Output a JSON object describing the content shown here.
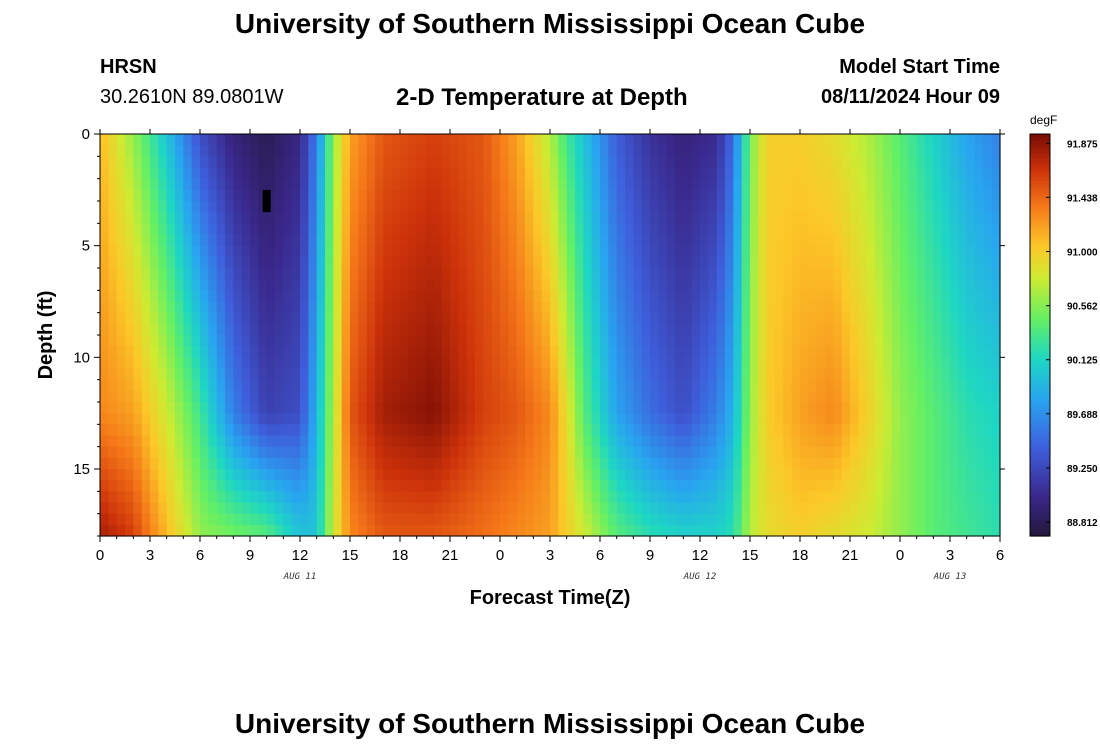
{
  "page": {
    "title_top": "University of Southern Mississippi Ocean Cube",
    "station": "HRSN",
    "coords": "30.2610N  89.0801W",
    "subtitle": "2-D Temperature at Depth",
    "start_label": "Model Start Time",
    "start_value": "08/11/2024 Hour 09",
    "title_bottom": "University of Southern Mississippi Ocean Cube"
  },
  "chart_data": {
    "type": "heatmap",
    "title": "2-D Temperature at Depth",
    "xlabel": "Forecast Time(Z)",
    "ylabel": "Depth (ft)",
    "xlim": [
      0,
      54
    ],
    "ylim": [
      18,
      0
    ],
    "x_ticks": [
      0,
      3,
      6,
      9,
      12,
      15,
      18,
      21,
      24,
      27,
      30,
      33,
      36,
      39,
      42,
      45,
      48,
      51,
      54
    ],
    "x_tick_labels": [
      "0",
      "3",
      "6",
      "9",
      "12",
      "15",
      "18",
      "21",
      "0",
      "3",
      "6",
      "9",
      "12",
      "15",
      "18",
      "21",
      "0",
      "3",
      "6"
    ],
    "y_ticks": [
      0,
      5,
      10,
      15
    ],
    "y_tick_labels": [
      "0",
      "5",
      "10",
      "15"
    ],
    "date_labels": [
      {
        "text": "AUG 11",
        "x": 12
      },
      {
        "text": "AUG 12",
        "x": 36
      },
      {
        "text": "AUG 13",
        "x": 51
      }
    ],
    "colorbar": {
      "unit": "degF",
      "min": 88.7,
      "max": 91.95,
      "tick_values": [
        91.875,
        91.438,
        91.0,
        90.562,
        90.125,
        89.688,
        89.25,
        88.812
      ],
      "tick_labels": [
        "91.875",
        "91.438",
        "91.000",
        "90.562",
        "90.125",
        "89.688",
        "89.250",
        "88.812"
      ]
    },
    "marker": {
      "hour": 10,
      "depth_top": 2.5,
      "depth_bottom": 3.5
    },
    "columns": [
      {
        "hour": 0,
        "surface": 91.1,
        "mid": 91.3,
        "bottom": 91.8
      },
      {
        "hour": 2,
        "surface": 90.6,
        "mid": 91.2,
        "bottom": 91.6
      },
      {
        "hour": 4,
        "surface": 90.0,
        "mid": 90.8,
        "bottom": 91.1
      },
      {
        "hour": 6,
        "surface": 89.3,
        "mid": 90.3,
        "bottom": 90.6
      },
      {
        "hour": 8,
        "surface": 88.95,
        "mid": 89.6,
        "bottom": 90.5
      },
      {
        "hour": 10,
        "surface": 88.8,
        "mid": 89.2,
        "bottom": 90.4
      },
      {
        "hour": 12,
        "surface": 89.0,
        "mid": 89.3,
        "bottom": 90.0
      },
      {
        "hour": 13,
        "surface": 89.6,
        "mid": 89.9,
        "bottom": 90.0
      },
      {
        "hour": 14,
        "surface": 90.6,
        "mid": 90.7,
        "bottom": 90.8
      },
      {
        "hour": 15,
        "surface": 91.2,
        "mid": 91.5,
        "bottom": 91.3
      },
      {
        "hour": 17,
        "surface": 91.5,
        "mid": 91.8,
        "bottom": 91.5
      },
      {
        "hour": 20,
        "surface": 91.6,
        "mid": 91.9,
        "bottom": 91.5
      },
      {
        "hour": 23,
        "surface": 91.5,
        "mid": 91.6,
        "bottom": 91.4
      },
      {
        "hour": 25,
        "surface": 91.2,
        "mid": 91.5,
        "bottom": 91.3
      },
      {
        "hour": 27,
        "surface": 90.7,
        "mid": 91.3,
        "bottom": 91.2
      },
      {
        "hour": 28,
        "surface": 90.3,
        "mid": 90.9,
        "bottom": 91.0
      },
      {
        "hour": 29,
        "surface": 90.0,
        "mid": 90.4,
        "bottom": 90.8
      },
      {
        "hour": 31,
        "surface": 89.4,
        "mid": 89.8,
        "bottom": 90.4
      },
      {
        "hour": 33,
        "surface": 89.1,
        "mid": 89.5,
        "bottom": 90.2
      },
      {
        "hour": 35,
        "surface": 88.95,
        "mid": 89.3,
        "bottom": 90.1
      },
      {
        "hour": 37,
        "surface": 89.05,
        "mid": 89.6,
        "bottom": 90.1
      },
      {
        "hour": 38,
        "surface": 89.5,
        "mid": 89.9,
        "bottom": 90.2
      },
      {
        "hour": 39,
        "surface": 90.5,
        "mid": 90.6,
        "bottom": 90.7
      },
      {
        "hour": 40,
        "surface": 91.0,
        "mid": 91.0,
        "bottom": 90.9
      },
      {
        "hour": 42,
        "surface": 91.0,
        "mid": 91.2,
        "bottom": 91.0
      },
      {
        "hour": 44,
        "surface": 90.9,
        "mid": 91.3,
        "bottom": 90.9
      },
      {
        "hour": 46,
        "surface": 90.7,
        "mid": 91.0,
        "bottom": 90.8
      },
      {
        "hour": 48,
        "surface": 90.4,
        "mid": 90.6,
        "bottom": 90.6
      },
      {
        "hour": 50,
        "surface": 90.1,
        "mid": 90.4,
        "bottom": 90.4
      },
      {
        "hour": 52,
        "surface": 89.8,
        "mid": 90.2,
        "bottom": 90.3
      },
      {
        "hour": 54,
        "surface": 89.6,
        "mid": 90.1,
        "bottom": 90.2
      }
    ]
  }
}
